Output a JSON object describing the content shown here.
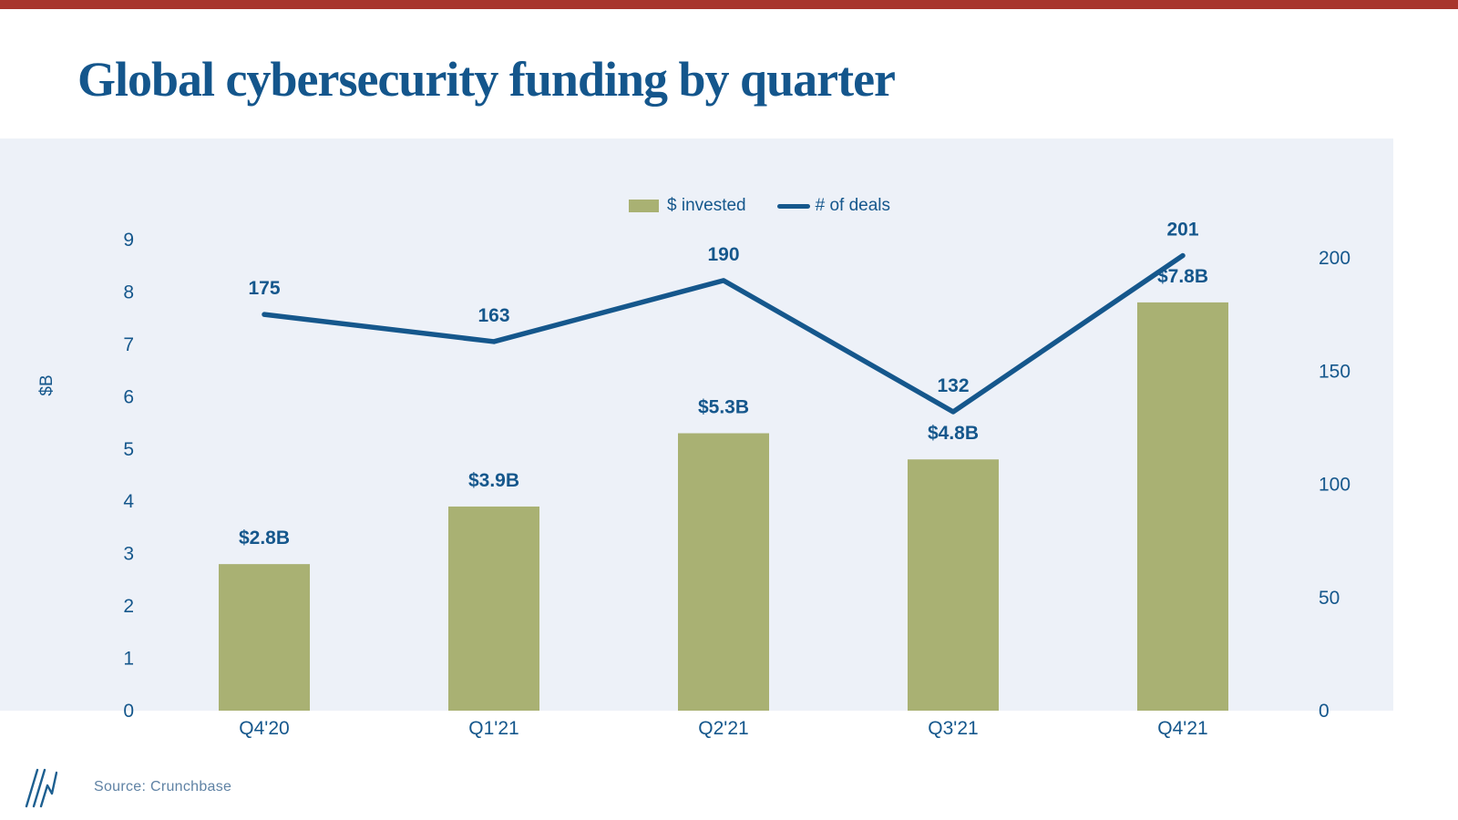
{
  "page": {
    "title": "Global cybersecurity funding by quarter",
    "source": "Source: Crunchbase",
    "logo": "triple-slash-logo"
  },
  "colors": {
    "top_bar": "#a8352c",
    "band_background": "#edf1f8",
    "bar": "#a9b173",
    "line": "#15578c",
    "text_blue": "#15578c",
    "title_blue": "#14568c",
    "source_text": "#5f82a4"
  },
  "chart_data": {
    "type": "bar",
    "subtype": "combo-bar-line",
    "title": "Global cybersecurity funding by quarter",
    "categories": [
      "Q4'20",
      "Q1'21",
      "Q2'21",
      "Q3'21",
      "Q4'21"
    ],
    "series": [
      {
        "name": "$ invested",
        "kind": "bar",
        "axis": "left",
        "unit": "$B",
        "values": [
          2.8,
          3.9,
          5.3,
          4.8,
          7.8
        ],
        "value_labels": [
          "$2.8B",
          "$3.9B",
          "$5.3B",
          "$4.8B",
          "$7.8B"
        ],
        "color": "#a9b173"
      },
      {
        "name": "# of deals",
        "kind": "line",
        "axis": "right",
        "unit": "deals",
        "values": [
          175,
          163,
          190,
          132,
          201
        ],
        "value_labels": [
          "175",
          "163",
          "190",
          "132",
          "201"
        ],
        "color": "#15578c"
      }
    ],
    "left_axis": {
      "title": "$B",
      "ticks": [
        0,
        1,
        2,
        3,
        4,
        5,
        6,
        7,
        8,
        9
      ],
      "range": [
        0,
        9
      ]
    },
    "right_axis": {
      "title": "",
      "ticks": [
        0,
        50,
        100,
        150,
        200
      ],
      "range": [
        0,
        200
      ]
    },
    "legend": [
      "$ invested",
      "# of deals"
    ],
    "legend_position": "top-center",
    "grid": false
  }
}
